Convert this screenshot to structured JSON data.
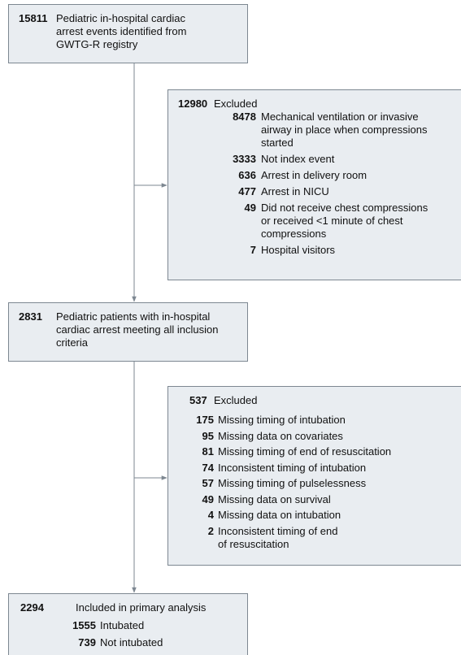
{
  "boxes": [
    {
      "count": "15811",
      "lines": [
        "Pediatric in-hospital cardiac",
        "arrest events identified from",
        "GWTG-R registry"
      ]
    },
    {
      "count": "12980",
      "lines": [
        "Excluded"
      ],
      "items": [
        {
          "count": "8478",
          "lines": [
            "Mechanical ventilation or invasive",
            "airway in place when compressions",
            "started"
          ]
        },
        {
          "count": "3333",
          "lines": [
            "Not index event"
          ]
        },
        {
          "count": "636",
          "lines": [
            "Arrest in delivery room"
          ]
        },
        {
          "count": "477",
          "lines": [
            "Arrest in NICU"
          ]
        },
        {
          "count": "49",
          "lines": [
            "Did not receive chest compressions",
            "or received <1 minute of chest",
            "compressions"
          ]
        },
        {
          "count": "7",
          "lines": [
            "Hospital visitors"
          ]
        }
      ]
    },
    {
      "count": "2831",
      "lines": [
        "Pediatric patients with in-hospital",
        "cardiac arrest meeting all inclusion",
        "criteria"
      ]
    },
    {
      "count": "537",
      "lines": [
        "Excluded"
      ],
      "items": [
        {
          "count": "175",
          "lines": [
            "Missing timing of intubation"
          ]
        },
        {
          "count": "95",
          "lines": [
            "Missing data on covariates"
          ]
        },
        {
          "count": "81",
          "lines": [
            "Missing timing of end of resuscitation"
          ]
        },
        {
          "count": "74",
          "lines": [
            "Inconsistent timing of intubation"
          ]
        },
        {
          "count": "57",
          "lines": [
            "Missing timing of pulselessness"
          ]
        },
        {
          "count": "49",
          "lines": [
            "Missing data on survival"
          ]
        },
        {
          "count": "4",
          "lines": [
            "Missing data on intubation"
          ]
        },
        {
          "count": "2",
          "lines": [
            "Inconsistent timing of end",
            "of resuscitation"
          ]
        }
      ]
    },
    {
      "count": "2294",
      "lines": [
        "Included in primary analysis"
      ],
      "items": [
        {
          "count": "1555",
          "lines": [
            "Intubated"
          ]
        },
        {
          "count": "739",
          "lines": [
            "Not intubated"
          ]
        }
      ]
    }
  ]
}
